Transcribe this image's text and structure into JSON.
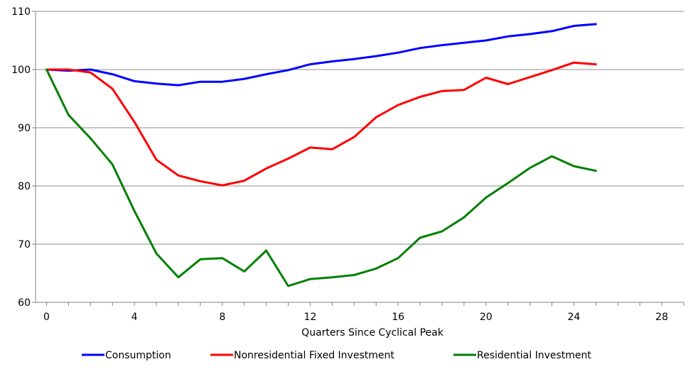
{
  "chart_data": {
    "type": "line",
    "title": "",
    "xlabel": "Quarters Since Cyclical Peak",
    "ylabel": "",
    "xlim": [
      -0.5,
      29
    ],
    "ylim": [
      60,
      110
    ],
    "x_ticks": [
      0,
      4,
      8,
      12,
      16,
      20,
      24,
      28
    ],
    "x_minor_step": 1,
    "y_ticks": [
      60,
      70,
      80,
      90,
      100,
      110
    ],
    "grid": "horizontal",
    "legend": "bottom",
    "x": [
      0,
      1,
      2,
      3,
      4,
      5,
      6,
      7,
      8,
      9,
      10,
      11,
      12,
      13,
      14,
      15,
      16,
      17,
      18,
      19,
      20,
      21,
      22,
      23,
      24,
      25
    ],
    "series": [
      {
        "name": "Consumption",
        "color": "#0000ff",
        "values": [
          100.0,
          99.8,
          100.0,
          99.2,
          98.0,
          97.6,
          97.3,
          97.9,
          97.9,
          98.4,
          99.2,
          99.9,
          100.9,
          101.4,
          101.8,
          102.3,
          102.9,
          103.7,
          104.2,
          104.6,
          105.0,
          105.7,
          106.1,
          106.6,
          107.5,
          107.8
        ]
      },
      {
        "name": "Nonresidential Fixed Investment",
        "color": "#ff0000",
        "values": [
          100.0,
          100.0,
          99.5,
          96.7,
          91.0,
          84.5,
          81.8,
          80.8,
          80.1,
          80.9,
          83.0,
          84.7,
          86.6,
          86.3,
          88.4,
          91.8,
          93.9,
          95.3,
          96.3,
          96.5,
          98.6,
          97.5,
          98.7,
          99.9,
          101.2,
          100.9
        ]
      },
      {
        "name": "Residential Investment",
        "color": "#008000",
        "values": [
          100.0,
          92.2,
          88.2,
          83.7,
          75.7,
          68.4,
          64.3,
          67.4,
          67.6,
          65.3,
          68.9,
          62.8,
          64.0,
          64.3,
          64.7,
          65.8,
          67.6,
          71.1,
          72.2,
          74.6,
          78.0,
          80.5,
          83.1,
          85.1,
          83.4,
          82.6
        ]
      }
    ]
  }
}
